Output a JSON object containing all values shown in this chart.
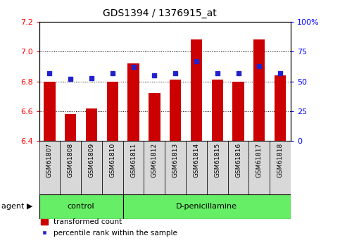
{
  "title": "GDS1394 / 1376915_at",
  "categories": [
    "GSM61807",
    "GSM61808",
    "GSM61809",
    "GSM61810",
    "GSM61811",
    "GSM61812",
    "GSM61813",
    "GSM61814",
    "GSM61815",
    "GSM61816",
    "GSM61817",
    "GSM61818"
  ],
  "bar_values": [
    6.8,
    6.58,
    6.62,
    6.8,
    6.92,
    6.72,
    6.81,
    7.08,
    6.81,
    6.8,
    7.08,
    6.84
  ],
  "percentile_values": [
    57,
    52,
    53,
    57,
    62,
    55,
    57,
    67,
    57,
    57,
    63,
    57
  ],
  "ylim_left": [
    6.4,
    7.2
  ],
  "ylim_right": [
    0,
    100
  ],
  "bar_color": "#cc0000",
  "dot_color": "#2222cc",
  "control_label": "control",
  "treatment_label": "D-penicillamine",
  "agent_label": "agent",
  "legend_bar": "transformed count",
  "legend_dot": "percentile rank within the sample",
  "control_count": 4,
  "yticks_left": [
    6.4,
    6.6,
    6.8,
    7.0,
    7.2
  ],
  "yticks_right": [
    0,
    25,
    50,
    75,
    100
  ],
  "right_tick_labels": [
    "0",
    "25",
    "50",
    "75",
    "100%"
  ],
  "label_color_green": "#66dd66",
  "tick_box_color": "#d8d8d8"
}
